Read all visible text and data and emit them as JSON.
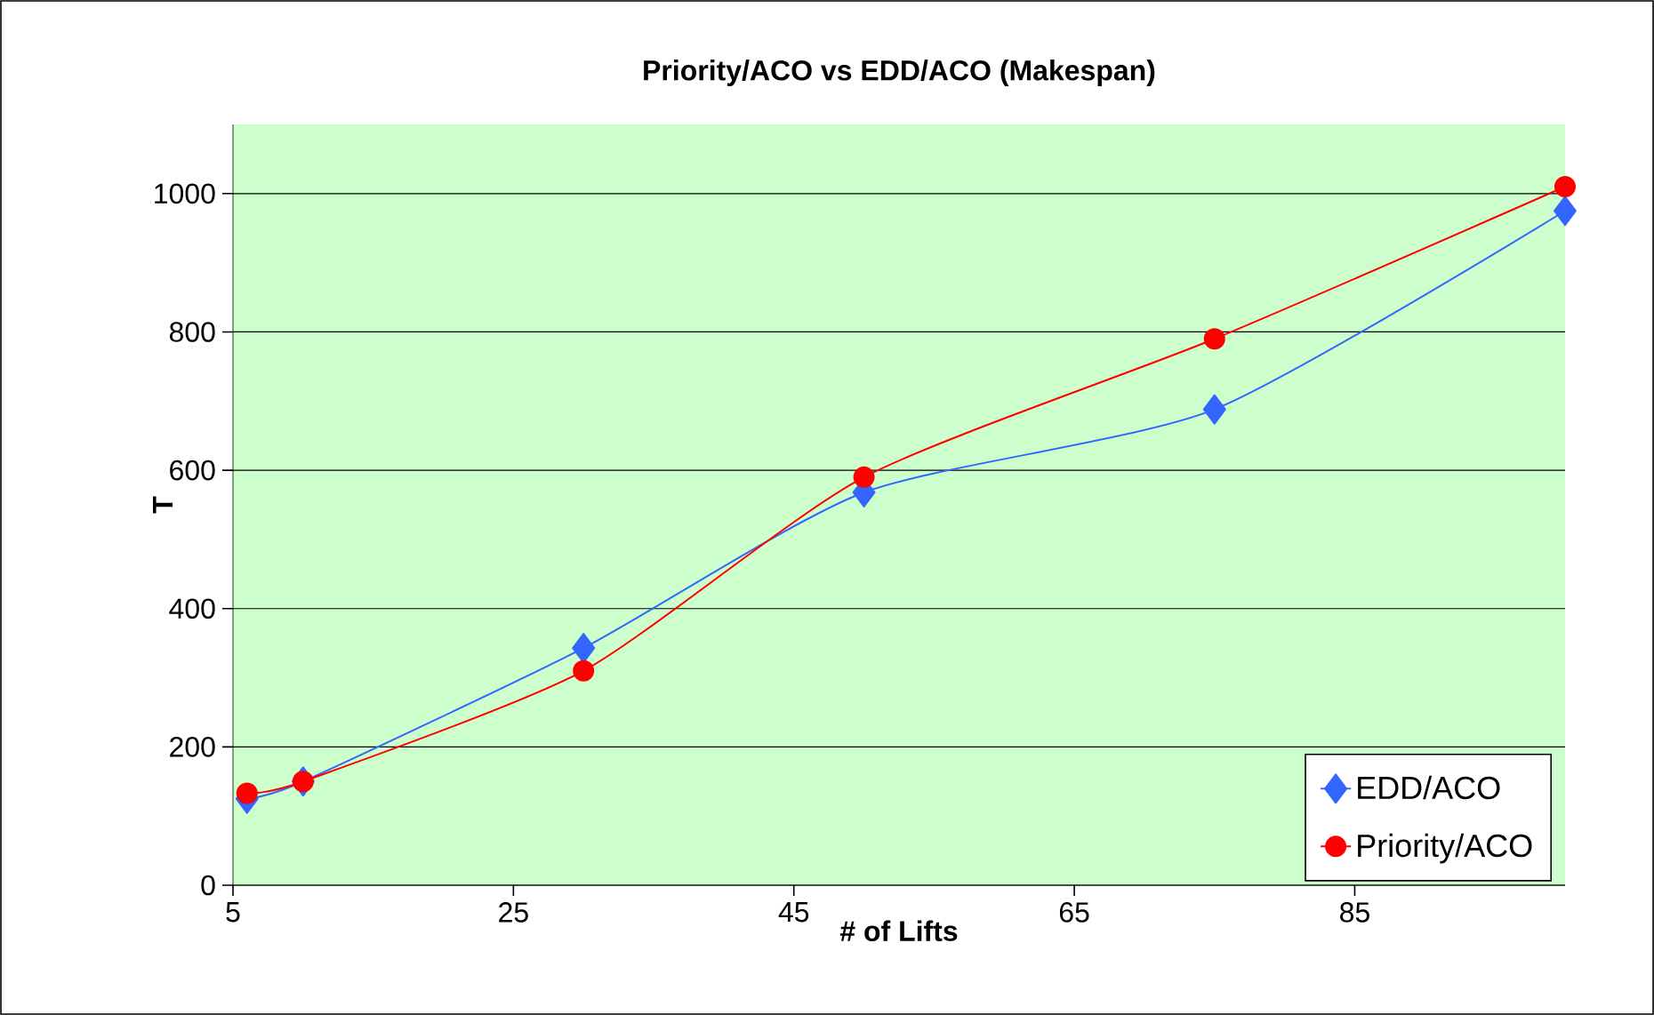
{
  "chart_data": {
    "type": "line",
    "title": "Priority/ACO vs EDD/ACO (Makespan)",
    "xlabel": "# of Lifts",
    "ylabel": "T",
    "x": [
      6,
      10,
      30,
      50,
      75,
      100
    ],
    "series": [
      {
        "name": "EDD/ACO",
        "color": "#3366ff",
        "marker": "diamond",
        "values": [
          125,
          150,
          343,
          568,
          688,
          975
        ]
      },
      {
        "name": "Priority/ACO",
        "color": "#ff0000",
        "marker": "circle",
        "values": [
          133,
          150,
          310,
          590,
          790,
          1010
        ]
      }
    ],
    "xlim": [
      5,
      100
    ],
    "xticks": [
      5,
      25,
      45,
      65,
      85
    ],
    "ylim": [
      0,
      1100
    ],
    "yticks": [
      0,
      200,
      400,
      600,
      800,
      1000
    ],
    "grid": "y",
    "legend": "bottom right",
    "line_style": "solid"
  }
}
